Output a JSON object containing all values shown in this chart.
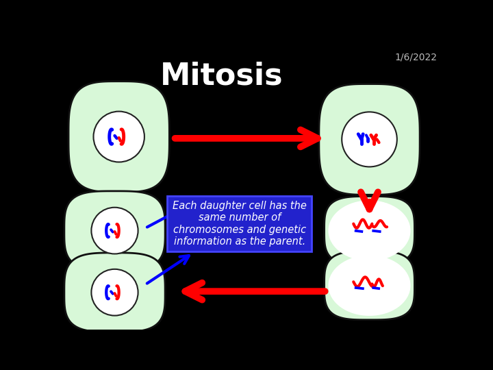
{
  "background_color": "#000000",
  "title": "Mitosis",
  "title_color": "#ffffff",
  "title_fontsize": 32,
  "date_text": "1/6/2022",
  "date_color": "#bbbbbb",
  "date_fontsize": 10,
  "annotation_text": "Each daughter cell has the\nsame number of\nchromosomes and genetic\ninformation as the parent.",
  "annotation_bg": "#2222cc",
  "annotation_color": "#ffffff",
  "annotation_fontsize": 10.5,
  "cell_fill": "#d8f8d8",
  "cell_edge": "#111111",
  "nucleus_fill": "#ffffff",
  "nucleus_edge": "#222222"
}
